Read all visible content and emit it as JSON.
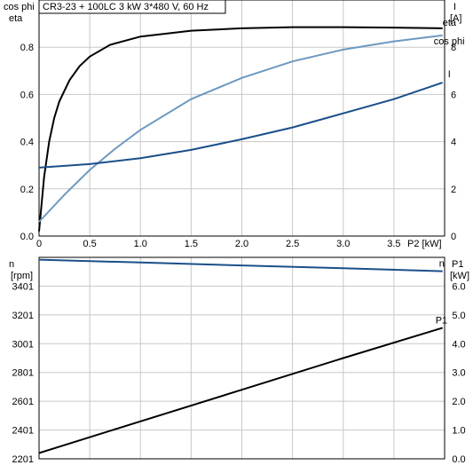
{
  "chart_data": [
    {
      "type": "line",
      "title": "CR3-23 + 100LC   3 kW   3*480 V, 60 Hz",
      "left_axis_label_lines": [
        "cos phi",
        "eta"
      ],
      "right_axis_label_lines": [
        "I",
        "[A]"
      ],
      "xlabel": "P2 [kW]",
      "xlim": [
        0,
        4.0
      ],
      "ylim_left": [
        0,
        1.0
      ],
      "ylim_right": [
        0,
        10
      ],
      "x_ticks": [
        "0",
        "0.5",
        "1.0",
        "1.5",
        "2.0",
        "2.5",
        "3.0",
        "3.5"
      ],
      "y_left_ticks": [
        "0.0",
        "0.2",
        "0.4",
        "0.6",
        "0.8"
      ],
      "y_right_ticks": [
        "0",
        "2",
        "4",
        "6",
        "8"
      ],
      "grid": true,
      "series": [
        {
          "name": "eta",
          "axis": "left",
          "color": "#000000",
          "x": [
            0,
            0.05,
            0.1,
            0.15,
            0.2,
            0.3,
            0.4,
            0.5,
            0.7,
            1.0,
            1.5,
            2.0,
            2.5,
            3.0,
            3.5,
            3.98
          ],
          "y": [
            0.02,
            0.25,
            0.4,
            0.5,
            0.57,
            0.66,
            0.72,
            0.76,
            0.81,
            0.845,
            0.87,
            0.88,
            0.885,
            0.885,
            0.883,
            0.88
          ]
        },
        {
          "name": "cos phi",
          "axis": "left",
          "color": "#6d99c0",
          "x": [
            0,
            0.25,
            0.5,
            0.75,
            1.0,
            1.5,
            2.0,
            2.5,
            3.0,
            3.5,
            3.98
          ],
          "y": [
            0.06,
            0.175,
            0.28,
            0.37,
            0.45,
            0.58,
            0.67,
            0.74,
            0.79,
            0.825,
            0.85
          ]
        },
        {
          "name": "I",
          "axis": "right",
          "color": "#1a4f8a",
          "x": [
            0,
            0.5,
            1.0,
            1.5,
            2.0,
            2.5,
            3.0,
            3.5,
            3.98
          ],
          "y": [
            2.9,
            3.05,
            3.3,
            3.65,
            4.1,
            4.6,
            5.2,
            5.8,
            6.5
          ]
        }
      ]
    },
    {
      "type": "line",
      "left_axis_label_lines": [
        "n",
        "[rpm]"
      ],
      "right_axis_label_lines": [
        "P1",
        "[kW]"
      ],
      "xlim": [
        0,
        4.0
      ],
      "ylim_left": [
        2201,
        3601
      ],
      "ylim_right": [
        0,
        7.0
      ],
      "y_left_ticks": [
        "2201",
        "2401",
        "2601",
        "2801",
        "3001",
        "3201",
        "3401"
      ],
      "y_right_ticks": [
        "0.0",
        "1.0",
        "2.0",
        "3.0",
        "4.0",
        "5.0",
        "6.0"
      ],
      "grid": true,
      "series": [
        {
          "name": "n",
          "axis": "left",
          "color": "#1a4f8a",
          "x": [
            0,
            1.0,
            2.0,
            3.0,
            3.98
          ],
          "y": [
            3585,
            3565,
            3545,
            3525,
            3505
          ]
        },
        {
          "name": "P1",
          "axis": "right",
          "color": "#000000",
          "x": [
            0,
            1.0,
            2.0,
            3.0,
            3.98
          ],
          "y": [
            0.2,
            1.3,
            2.4,
            3.5,
            4.55
          ]
        }
      ]
    }
  ]
}
